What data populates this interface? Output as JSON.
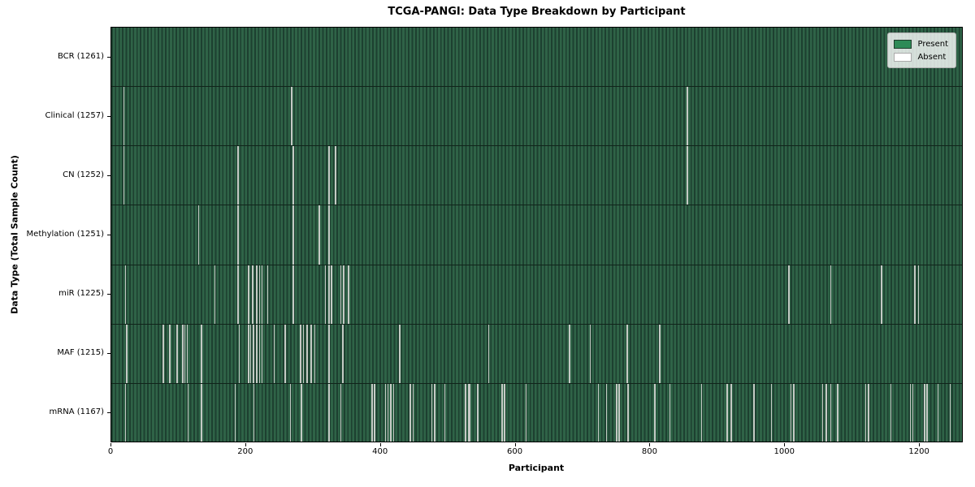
{
  "chart_data": {
    "type": "heatmap",
    "title": "TCGA-PANGI: Data Type Breakdown by Participant",
    "xlabel": "Participant",
    "ylabel": "Data Type (Total Sample Count)",
    "x_ticks": [
      0,
      200,
      400,
      600,
      800,
      1000,
      1200
    ],
    "x_range": [
      0,
      1265
    ],
    "grid": false,
    "legend": {
      "position": "upper right",
      "present_label": "Present",
      "absent_label": "Absent"
    },
    "colors": {
      "present": "#2e8b57",
      "absent": "#ffffff",
      "bar_stripe_light": "#2f6347",
      "bar_stripe_dark": "#1d4030",
      "absent_line": "#c4cac4"
    },
    "rows": [
      {
        "name": "BCR",
        "count": 1261,
        "absent": []
      },
      {
        "name": "Clinical",
        "count": 1257,
        "absent": [
          18,
          267,
          854
        ]
      },
      {
        "name": "CN",
        "count": 1252,
        "absent": [
          18,
          187,
          269,
          322,
          332,
          854
        ]
      },
      {
        "name": "Methylation",
        "count": 1251,
        "absent": [
          129,
          187,
          269,
          308,
          322
        ]
      },
      {
        "name": "miR",
        "count": 1225,
        "absent": [
          20,
          153,
          187,
          203,
          209,
          215,
          219,
          223,
          231,
          269,
          317,
          322,
          326,
          340,
          344,
          351,
          1005,
          1067,
          1142,
          1192,
          1197
        ]
      },
      {
        "name": "MAF",
        "count": 1215,
        "absent": [
          22,
          76,
          86,
          97,
          105,
          108,
          112,
          133,
          189,
          203,
          206,
          210,
          215,
          219,
          223,
          241,
          257,
          280,
          284,
          290,
          296,
          301,
          322,
          343,
          427,
          559,
          679,
          710,
          765,
          813
        ]
      },
      {
        "name": "mRNA",
        "count": 1167,
        "absent": [
          20,
          113,
          133,
          183,
          211,
          265,
          281,
          322,
          340,
          386,
          390,
          406,
          410,
          414,
          418,
          443,
          447,
          475,
          479,
          494,
          525,
          529,
          531,
          543,
          579,
          583,
          615,
          722,
          734,
          749,
          753,
          766,
          806,
          828,
          875,
          913,
          919,
          953,
          979,
          1008,
          1012,
          1055,
          1060,
          1067,
          1077,
          1119,
          1123,
          1156,
          1185,
          1189,
          1206,
          1210,
          1226,
          1244
        ]
      }
    ]
  }
}
